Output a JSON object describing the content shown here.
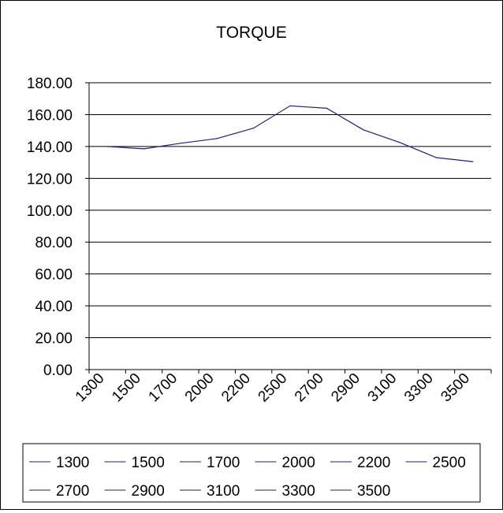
{
  "chart_data": {
    "type": "line",
    "title": "TORQUE",
    "categories": [
      "1300",
      "1500",
      "1700",
      "2000",
      "2200",
      "2500",
      "2700",
      "2900",
      "3100",
      "3300",
      "3500"
    ],
    "series": [
      {
        "name": "",
        "values": [
          140,
          138.5,
          142,
          145,
          151.5,
          165.5,
          164,
          150.5,
          142.5,
          133,
          130.5
        ],
        "color": "#1f1f7a"
      }
    ],
    "ylim": [
      0,
      180
    ],
    "yticks": [
      "0.00",
      "20.00",
      "40.00",
      "60.00",
      "80.00",
      "100.00",
      "120.00",
      "140.00",
      "160.00",
      "180.00"
    ],
    "grid": true,
    "legend": {
      "placement": "bottom",
      "entries": [
        "1300",
        "1500",
        "1700",
        "2000",
        "2200",
        "2500",
        "2700",
        "2900",
        "3100",
        "3300",
        "3500"
      ],
      "colors": [
        "#1f1f7a",
        "#1f1f7a",
        "#1f1f7a",
        "#1f1f7a",
        "#1f1f7a",
        "#1f1f7a",
        "#2a2a2a",
        "#2a2a2a",
        "#2a2a2a",
        "#2a2a2a",
        "#2a2a2a"
      ]
    }
  }
}
